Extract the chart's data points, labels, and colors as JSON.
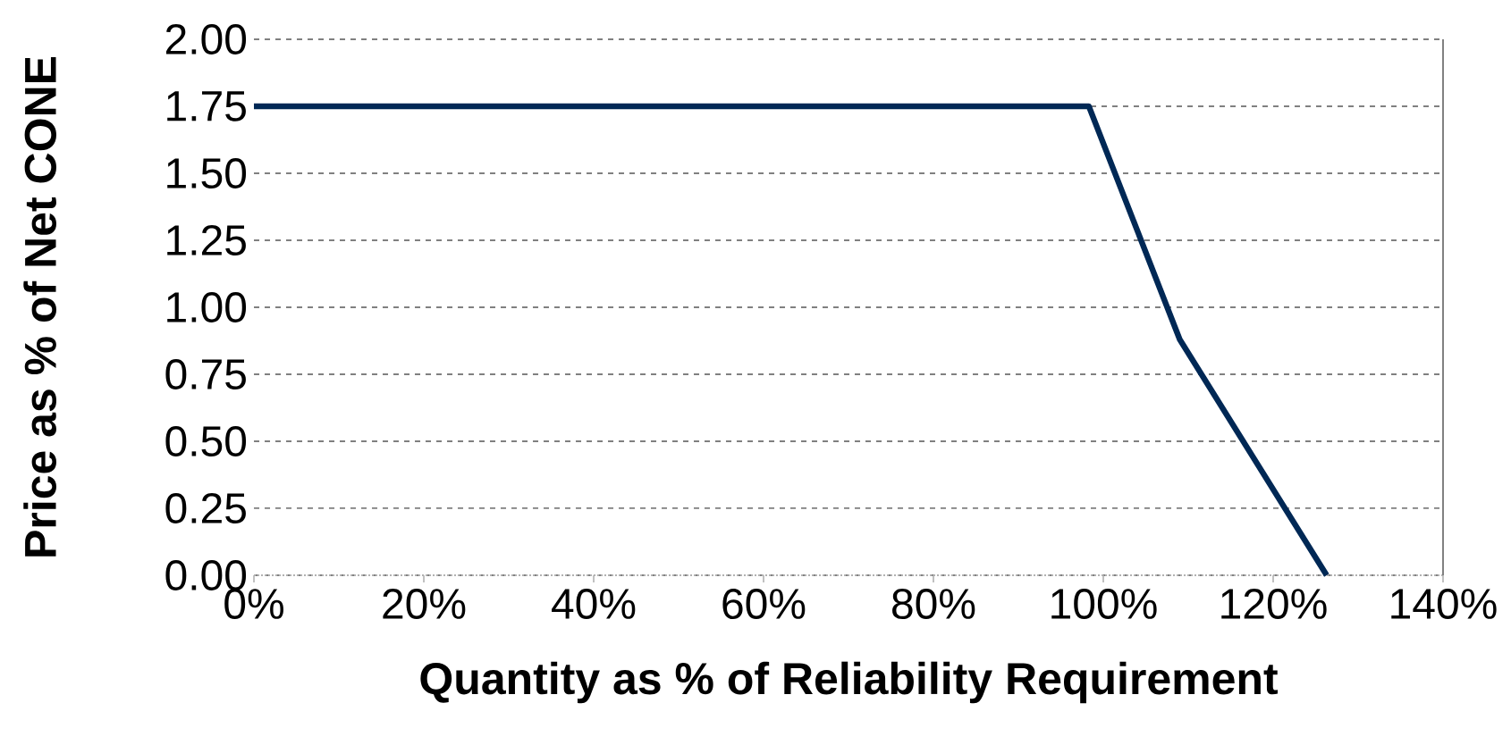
{
  "chart_data": {
    "type": "line",
    "xlabel": "Quantity as % of Reliability Requirement",
    "ylabel": "Price as % of Net CONE",
    "x": [
      0,
      98.3,
      109,
      126.3
    ],
    "series": [
      {
        "color": "#002855",
        "values": [
          1.75,
          1.75,
          0.88,
          0
        ]
      }
    ],
    "xlim": [
      0,
      140
    ],
    "ylim": [
      0,
      2
    ],
    "xticks": [
      {
        "value": 0,
        "label": "0%"
      },
      {
        "value": 20,
        "label": "20%"
      },
      {
        "value": 40,
        "label": "40%"
      },
      {
        "value": 60,
        "label": "60%"
      },
      {
        "value": 80,
        "label": "80%"
      },
      {
        "value": 100,
        "label": "100%"
      },
      {
        "value": 120,
        "label": "120%"
      },
      {
        "value": 140,
        "label": "140%"
      }
    ],
    "yticks": [
      {
        "value": 0,
        "label": "0.00"
      },
      {
        "value": 0.25,
        "label": "0.25"
      },
      {
        "value": 0.5,
        "label": "0.50"
      },
      {
        "value": 0.75,
        "label": "0.75"
      },
      {
        "value": 1,
        "label": "1.00"
      },
      {
        "value": 1.25,
        "label": "1.25"
      },
      {
        "value": 1.5,
        "label": "1.50"
      },
      {
        "value": 1.75,
        "label": "1.75"
      },
      {
        "value": 2,
        "label": "2.00"
      }
    ],
    "grid": "y",
    "marker": "none",
    "line_style": "solid"
  }
}
